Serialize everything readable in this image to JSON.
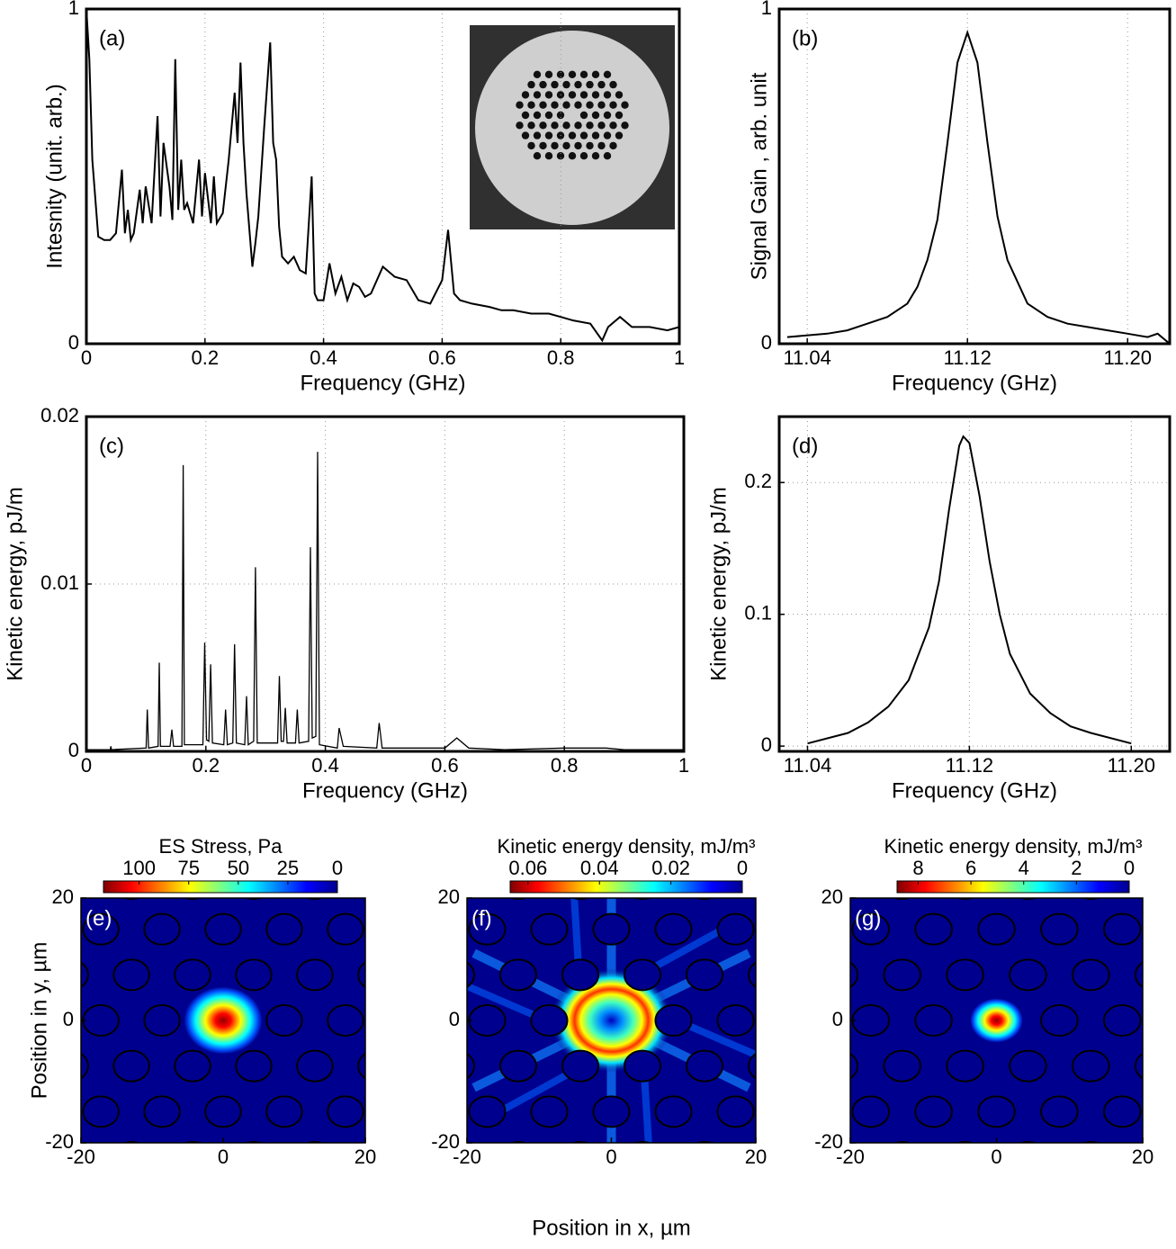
{
  "chart_data": [
    {
      "type": "line",
      "label": "(a)",
      "xlabel": "Frequency (GHz)",
      "ylabel": "Intesnity (unit. arb.)",
      "xlim": [
        0,
        1
      ],
      "ylim": [
        0,
        1
      ],
      "xticks": [
        0,
        0.2,
        0.4,
        0.6,
        0.8,
        1
      ],
      "yticks": [
        0,
        1
      ],
      "grid": true,
      "color": "#000000",
      "x": [
        0,
        0.005,
        0.01,
        0.02,
        0.03,
        0.04,
        0.05,
        0.06,
        0.065,
        0.07,
        0.075,
        0.08,
        0.09,
        0.095,
        0.1,
        0.11,
        0.12,
        0.125,
        0.13,
        0.14,
        0.145,
        0.15,
        0.155,
        0.16,
        0.165,
        0.17,
        0.18,
        0.19,
        0.195,
        0.2,
        0.21,
        0.215,
        0.22,
        0.23,
        0.24,
        0.25,
        0.255,
        0.26,
        0.265,
        0.27,
        0.28,
        0.285,
        0.29,
        0.3,
        0.31,
        0.315,
        0.32,
        0.325,
        0.33,
        0.34,
        0.35,
        0.36,
        0.37,
        0.38,
        0.385,
        0.39,
        0.4,
        0.41,
        0.42,
        0.43,
        0.44,
        0.45,
        0.46,
        0.47,
        0.48,
        0.5,
        0.52,
        0.54,
        0.56,
        0.58,
        0.6,
        0.61,
        0.62,
        0.63,
        0.65,
        0.68,
        0.7,
        0.72,
        0.75,
        0.78,
        0.8,
        0.82,
        0.85,
        0.87,
        0.88,
        0.9,
        0.92,
        0.95,
        0.98,
        1.0
      ],
      "values": [
        1.0,
        0.85,
        0.55,
        0.32,
        0.31,
        0.31,
        0.33,
        0.52,
        0.33,
        0.4,
        0.31,
        0.33,
        0.46,
        0.36,
        0.47,
        0.36,
        0.68,
        0.38,
        0.6,
        0.47,
        0.37,
        0.85,
        0.4,
        0.55,
        0.4,
        0.42,
        0.36,
        0.55,
        0.38,
        0.51,
        0.36,
        0.5,
        0.36,
        0.39,
        0.55,
        0.75,
        0.6,
        0.84,
        0.6,
        0.45,
        0.23,
        0.3,
        0.38,
        0.65,
        0.9,
        0.6,
        0.55,
        0.35,
        0.26,
        0.24,
        0.26,
        0.22,
        0.21,
        0.5,
        0.15,
        0.13,
        0.13,
        0.24,
        0.15,
        0.2,
        0.13,
        0.18,
        0.17,
        0.14,
        0.15,
        0.23,
        0.2,
        0.19,
        0.13,
        0.12,
        0.19,
        0.34,
        0.15,
        0.13,
        0.12,
        0.11,
        0.1,
        0.1,
        0.09,
        0.09,
        0.08,
        0.07,
        0.06,
        0.01,
        0.05,
        0.08,
        0.05,
        0.05,
        0.04,
        0.05
      ]
    },
    {
      "type": "line",
      "label": "(b)",
      "xlabel": "Frequency (GHz)",
      "ylabel": "Signal Gain , arb. unit",
      "xlim": [
        11.026,
        11.221
      ],
      "ylim": [
        0,
        1
      ],
      "xticks": [
        11.04,
        11.12,
        {
          "value": 11.2,
          "label": "11.20"
        }
      ],
      "yticks": [
        0,
        1
      ],
      "grid": true,
      "color": "#000000",
      "x": [
        11.03,
        11.05,
        11.06,
        11.07,
        11.08,
        11.09,
        11.095,
        11.1,
        11.105,
        11.11,
        11.115,
        11.12,
        11.125,
        11.13,
        11.135,
        11.14,
        11.15,
        11.16,
        11.17,
        11.18,
        11.19,
        11.2,
        11.21,
        11.215,
        11.221
      ],
      "values": [
        0.02,
        0.03,
        0.04,
        0.06,
        0.08,
        0.12,
        0.17,
        0.25,
        0.37,
        0.6,
        0.84,
        0.93,
        0.84,
        0.6,
        0.38,
        0.25,
        0.12,
        0.08,
        0.06,
        0.05,
        0.04,
        0.03,
        0.02,
        0.03,
        0.0
      ]
    },
    {
      "type": "line",
      "label": "(c)",
      "xlabel": "Frequency (GHz)",
      "ylabel": "Kinetic energy, pJ/m",
      "xlim": [
        0,
        1
      ],
      "ylim": [
        0,
        0.02
      ],
      "xticks": [
        0,
        0.2,
        0.4,
        0.6,
        0.8,
        1
      ],
      "yticks": [
        0,
        0.01,
        0.02
      ],
      "grid": true,
      "color": "#000000",
      "x": [
        0,
        0.04,
        0.041,
        0.042,
        0.1,
        0.102,
        0.104,
        0.12,
        0.122,
        0.124,
        0.14,
        0.143,
        0.146,
        0.16,
        0.162,
        0.164,
        0.195,
        0.198,
        0.201,
        0.205,
        0.208,
        0.211,
        0.23,
        0.233,
        0.236,
        0.245,
        0.248,
        0.251,
        0.265,
        0.268,
        0.271,
        0.28,
        0.283,
        0.286,
        0.32,
        0.323,
        0.326,
        0.33,
        0.333,
        0.336,
        0.35,
        0.353,
        0.356,
        0.372,
        0.375,
        0.378,
        0.384,
        0.387,
        0.39,
        0.42,
        0.423,
        0.43,
        0.486,
        0.49,
        0.495,
        0.6,
        0.62,
        0.64,
        0.7,
        0.8,
        0.87,
        0.9,
        1.0
      ],
      "values": [
        0.0001,
        0.0001,
        0.0003,
        0.0001,
        0.0002,
        0.0025,
        0.0002,
        0.0003,
        0.0053,
        0.0003,
        0.0003,
        0.0013,
        0.0003,
        0.0003,
        0.0171,
        0.0004,
        0.0004,
        0.0065,
        0.0007,
        0.0006,
        0.0052,
        0.0005,
        0.0004,
        0.0025,
        0.0004,
        0.0005,
        0.0064,
        0.0005,
        0.0004,
        0.0033,
        0.0004,
        0.0006,
        0.011,
        0.0005,
        0.0005,
        0.0045,
        0.0006,
        0.0006,
        0.0026,
        0.0005,
        0.0005,
        0.0025,
        0.0005,
        0.0006,
        0.0122,
        0.0008,
        0.0009,
        0.0179,
        0.0004,
        0.0002,
        0.0014,
        0.0003,
        0.0002,
        0.0017,
        0.0002,
        0.0002,
        0.0008,
        0.0002,
        0.0001,
        0.0002,
        0.0002,
        0.0001,
        0.0001
      ]
    },
    {
      "type": "line",
      "label": "(d)",
      "xlabel": "Frequency (GHz)",
      "ylabel": "Kinetic energy, pJ/m",
      "xlim": [
        11.026,
        11.219
      ],
      "ylim": [
        -0.004,
        0.25
      ],
      "xticks": [
        11.04,
        11.12,
        {
          "value": 11.2,
          "label": "11.20"
        }
      ],
      "yticks": [
        0,
        0.1,
        0.2
      ],
      "grid": true,
      "color": "#000000",
      "x": [
        11.04,
        11.06,
        11.07,
        11.08,
        11.09,
        11.1,
        11.105,
        11.11,
        11.115,
        11.117,
        11.12,
        11.125,
        11.13,
        11.135,
        11.14,
        11.15,
        11.16,
        11.17,
        11.18,
        11.2
      ],
      "values": [
        0.002,
        0.01,
        0.018,
        0.03,
        0.05,
        0.09,
        0.125,
        0.18,
        0.228,
        0.235,
        0.23,
        0.19,
        0.14,
        0.1,
        0.07,
        0.04,
        0.025,
        0.015,
        0.01,
        0.002
      ]
    },
    {
      "type": "heatmap",
      "label": "(e)",
      "ylabel": "Position in y, µm",
      "colorbar_label": "ES Stress, Pa",
      "xlim": [
        -20,
        20
      ],
      "ylim": [
        -20,
        20
      ],
      "xticks": [
        -20,
        0,
        20
      ],
      "yticks": [
        -20,
        0,
        20
      ],
      "clim": [
        0,
        118
      ],
      "cticks": [
        100,
        75,
        50,
        25,
        0
      ]
    },
    {
      "type": "heatmap",
      "label": "(f)",
      "xlabel": "Position in x, µm",
      "colorbar_label": "Kinetic energy density, mJ/m³",
      "xlim": [
        -20,
        20
      ],
      "ylim": [
        -20,
        20
      ],
      "xticks": [
        -20,
        0,
        20
      ],
      "yticks": [
        -20,
        0,
        20
      ],
      "clim": [
        0,
        0.065
      ],
      "cticks": [
        0.06,
        0.04,
        0.02,
        0
      ]
    },
    {
      "type": "heatmap",
      "label": "(g)",
      "colorbar_label": "Kinetic energy density, mJ/m³",
      "xlim": [
        -20,
        20
      ],
      "ylim": [
        -20,
        20
      ],
      "xticks": [
        -20,
        0,
        20
      ],
      "yticks": [
        -20,
        0,
        20
      ],
      "clim": [
        0,
        8.8
      ],
      "cticks": [
        8,
        6,
        4,
        2,
        0
      ]
    }
  ]
}
